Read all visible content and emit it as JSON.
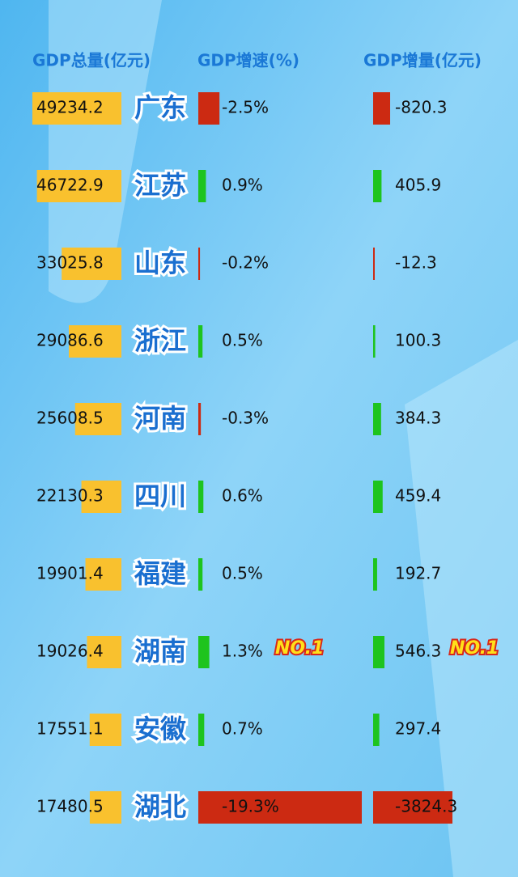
{
  "chart_data": {
    "type": "bar",
    "categories": [
      "广东",
      "江苏",
      "山东",
      "浙江",
      "河南",
      "四川",
      "福建",
      "湖南",
      "安徽",
      "湖北"
    ],
    "series": [
      {
        "name": "GDP总量(亿元)",
        "color": "#f9c12e",
        "values": [
          49234.2,
          46722.9,
          33025.8,
          29086.6,
          25608.5,
          22130.3,
          19901.4,
          19026.4,
          17551.1,
          17480.5
        ]
      },
      {
        "name": "GDP增速(%)",
        "color": "#1ec41e",
        "negative_color": "#cc2a12",
        "values": [
          -2.5,
          0.9,
          -0.2,
          0.5,
          -0.3,
          0.6,
          0.5,
          1.3,
          0.7,
          -19.3
        ],
        "value_labels": [
          "-2.5%",
          "0.9%",
          "-0.2%",
          "0.5%",
          "-0.3%",
          "0.6%",
          "0.5%",
          "1.3%",
          "0.7%",
          "-19.3%"
        ]
      },
      {
        "name": "GDP增量(亿元)",
        "color": "#1ec41e",
        "negative_color": "#cc2a12",
        "values": [
          -820.3,
          405.9,
          -12.3,
          100.3,
          384.3,
          459.4,
          192.7,
          546.3,
          297.4,
          -3824.3
        ]
      }
    ],
    "annotations": [
      {
        "text": "NO.1",
        "category": "湖南",
        "series": "GDP增速(%)"
      },
      {
        "text": "NO.1",
        "category": "湖南",
        "series": "GDP增量(亿元)"
      }
    ]
  }
}
